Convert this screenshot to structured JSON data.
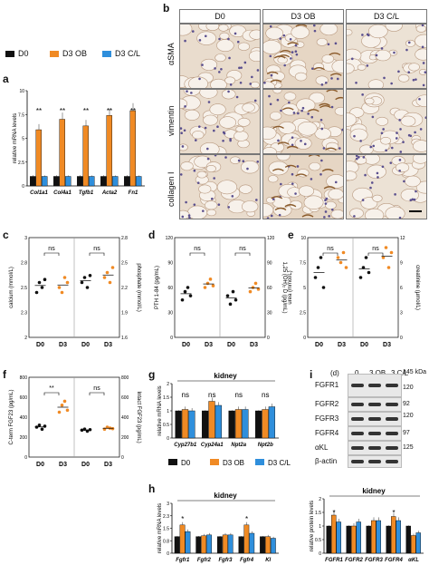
{
  "panels": [
    "a",
    "b",
    "c",
    "d",
    "e",
    "f",
    "g",
    "h",
    "i"
  ],
  "legend": {
    "items": [
      {
        "label": "D0",
        "color": "#111111"
      },
      {
        "label": "D3 OB",
        "color": "#f08a24"
      },
      {
        "label": "D3 C/L",
        "color": "#2f8fdc"
      }
    ]
  },
  "panel_b": {
    "columns": [
      "D0",
      "D3 OB",
      "D3 C/L"
    ],
    "rows": [
      "αSMA",
      "vimentin",
      "collagen I"
    ]
  },
  "chart_data": [
    {
      "id": "a",
      "type": "bar",
      "ylabel": "relative mRNA levels",
      "categories": [
        "Col1a1",
        "Col4a1",
        "Tgfb1",
        "Acta2",
        "Fn1"
      ],
      "ylim": [
        0,
        10
      ],
      "series": [
        {
          "name": "D0",
          "values": [
            1,
            1,
            1,
            1,
            1
          ]
        },
        {
          "name": "D3 OB",
          "values": [
            5.9,
            7.0,
            6.3,
            7.4,
            7.9
          ]
        },
        {
          "name": "D3 C/L",
          "values": [
            1.0,
            1.0,
            1.0,
            1.0,
            1.0
          ]
        }
      ],
      "significance": [
        "**",
        "**",
        "**",
        "**",
        "**"
      ]
    },
    {
      "id": "c",
      "type": "scatter",
      "ylabel_left": "calcium (mmol/L)",
      "ylabel_right": "phosphate (mmol/L)",
      "ylim_left": [
        2.0,
        3.0
      ],
      "ylim_right": [
        1.6,
        2.8
      ],
      "categories": [
        "D0",
        "D3",
        "D0",
        "D3"
      ],
      "annotations": [
        "ns",
        "ns"
      ]
    },
    {
      "id": "d",
      "type": "scatter",
      "ylabel_left": "PTH 1-84 (pg/mL)",
      "ylabel_right": "1,25 (OH)₂ D (pg/mL)",
      "ylim_left": [
        0,
        120
      ],
      "ylim_right": [
        0,
        120
      ],
      "categories": [
        "D0",
        "D3",
        "D0",
        "D3"
      ],
      "annotations": [
        "ns",
        "ns"
      ]
    },
    {
      "id": "e",
      "type": "scatter",
      "ylabel_left": "urea (mmol/L)",
      "ylabel_right": "creatinine (µmol/L)",
      "ylim_left": [
        0,
        10
      ],
      "ylim_right": [
        0,
        12
      ],
      "categories": [
        "D0",
        "D3",
        "D0",
        "D3"
      ],
      "annotations": [
        "ns",
        "ns"
      ]
    },
    {
      "id": "f",
      "type": "scatter",
      "ylabel_left": "C-term FGF23 (pg/mL)",
      "ylabel_right": "Intact FGF23 (pg/mL)",
      "ylim_left": [
        0,
        800
      ],
      "ylim_right": [
        0,
        800
      ],
      "categories": [
        "D0",
        "D3",
        "D0",
        "D3"
      ],
      "annotations": [
        "**",
        "ns"
      ]
    },
    {
      "id": "g",
      "type": "bar",
      "title": "kidney",
      "ylabel": "relative mRNA levels",
      "categories": [
        "Cyp27b1",
        "Cyp24a1",
        "Npt2a",
        "Npt2b"
      ],
      "ylim": [
        0,
        2
      ],
      "series": [
        {
          "name": "D0",
          "values": [
            1,
            1,
            1,
            1
          ]
        },
        {
          "name": "D3 OB",
          "values": [
            1.05,
            1.35,
            1.05,
            1.05
          ]
        },
        {
          "name": "D3 C/L",
          "values": [
            1.0,
            1.2,
            1.05,
            1.15
          ]
        }
      ],
      "significance": [
        "ns",
        "ns",
        "ns",
        "ns"
      ]
    },
    {
      "id": "h",
      "type": "bar",
      "title": "kidney",
      "ylabel": "relative mRNA levels",
      "categories": [
        "Fgfr1",
        "Fgfr2",
        "Fgfr3",
        "Fgfr4",
        "Kl"
      ],
      "ylim": [
        0,
        3
      ],
      "series": [
        {
          "name": "D0",
          "values": [
            1,
            1,
            1,
            1,
            1
          ]
        },
        {
          "name": "D3 OB",
          "values": [
            1.7,
            1.05,
            1.1,
            1.7,
            1.0
          ]
        },
        {
          "name": "D3 C/L",
          "values": [
            1.3,
            1.1,
            1.1,
            1.2,
            0.9
          ]
        }
      ],
      "significance": [
        "*",
        "",
        "",
        "*",
        ""
      ]
    },
    {
      "id": "i_bar",
      "type": "bar",
      "title": "kidney",
      "ylabel": "relative protein levels",
      "categories": [
        "FGFR1",
        "FGFR2",
        "FGFR3",
        "FGFR4",
        "αKL"
      ],
      "ylim": [
        0,
        2.0
      ],
      "series": [
        {
          "name": "D0",
          "values": [
            1,
            1,
            1,
            1,
            1
          ]
        },
        {
          "name": "D3 OB",
          "values": [
            1.4,
            1.0,
            1.2,
            1.35,
            0.65
          ]
        },
        {
          "name": "D3 C/L",
          "values": [
            1.15,
            1.15,
            1.2,
            1.2,
            0.75
          ]
        }
      ],
      "significance": [
        "*",
        "",
        "",
        "*",
        ""
      ]
    }
  ],
  "blot": {
    "header": [
      "(d)",
      "0",
      "3 OB",
      "3 C/L"
    ],
    "rows": [
      "FGFR1",
      "FGFR2",
      "FGFR3",
      "FGFR4",
      "αKL",
      "β-actin"
    ],
    "mw": [
      "145 kDa",
      "120",
      "92",
      "120",
      "97",
      "125"
    ]
  },
  "panel_axis": {
    "c_groups": [
      "D0",
      "D3",
      "D0",
      "D3"
    ],
    "d_ticks_left": [
      "150",
      "100",
      "50",
      "0"
    ],
    "f_ticks_left": [
      "800",
      "600",
      "400",
      "200",
      "0"
    ]
  }
}
